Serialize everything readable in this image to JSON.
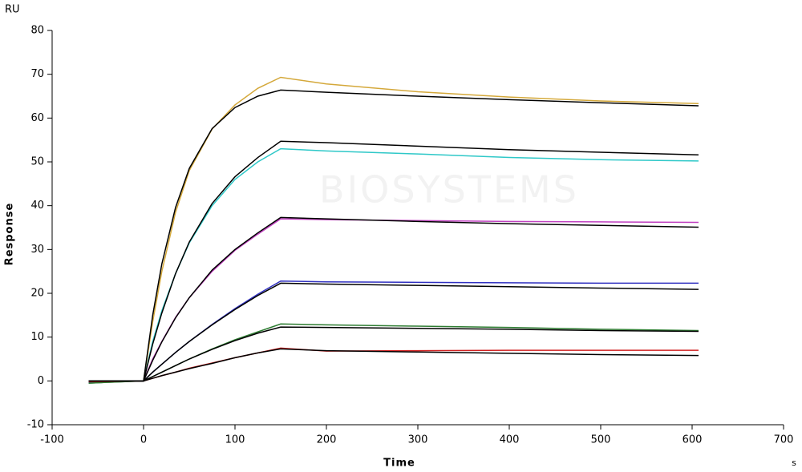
{
  "chart_data": {
    "type": "line",
    "y_unit": "RU",
    "y_label": "Response",
    "x_label": "Time",
    "x_unit": "s",
    "watermark": "BIOSYSTEMS",
    "xlim": [
      -100,
      700
    ],
    "ylim": [
      -10,
      80
    ],
    "xticks": [
      -100,
      0,
      100,
      200,
      300,
      400,
      500,
      600,
      700
    ],
    "yticks": [
      -10,
      0,
      10,
      20,
      30,
      40,
      50,
      60,
      70,
      80
    ],
    "x": [
      -60,
      0,
      10,
      20,
      35,
      50,
      75,
      100,
      125,
      150,
      200,
      300,
      400,
      500,
      607
    ],
    "series": [
      {
        "color": "#d4a83a",
        "values": [
          -0.5,
          0,
          13.5,
          25,
          38.5,
          48,
          57.5,
          63,
          66.8,
          69.3,
          67.8,
          66,
          64.8,
          63.9,
          63.3
        ]
      },
      {
        "color": "#2ec8c8",
        "values": [
          -0.5,
          0,
          9,
          16,
          24.5,
          31.5,
          40,
          46,
          50,
          53,
          52.5,
          51.8,
          51,
          50.5,
          50.2
        ]
      },
      {
        "color": "#c040c0",
        "values": [
          -0.3,
          0,
          5,
          9,
          14.5,
          19,
          25,
          29.8,
          33.5,
          37,
          36.8,
          36.6,
          36.4,
          36.3,
          36.2
        ]
      },
      {
        "color": "#3030c0",
        "values": [
          -0.3,
          0,
          2,
          3.8,
          6.5,
          9,
          12.9,
          16.5,
          19.8,
          22.8,
          22.6,
          22.5,
          22.4,
          22.3,
          22.3
        ]
      },
      {
        "color": "#2e7d32",
        "values": [
          -0.5,
          0,
          1,
          2,
          3.5,
          5,
          7.3,
          9.4,
          11.2,
          13,
          12.8,
          12.5,
          12.2,
          11.8,
          11.5
        ]
      },
      {
        "color": "#d02020",
        "values": [
          -0.2,
          0,
          0.6,
          1.2,
          2,
          2.9,
          4.1,
          5.3,
          6.4,
          7.5,
          6.8,
          6.9,
          7,
          7,
          7
        ]
      },
      {
        "color": "#000000",
        "values": [
          0,
          0,
          15,
          26.7,
          39.6,
          48.5,
          57.6,
          62.4,
          65,
          66.4,
          65.9,
          65,
          64.2,
          63.5,
          62.8
        ]
      },
      {
        "color": "#000000",
        "values": [
          0,
          0,
          8.4,
          15.5,
          24.5,
          31.7,
          40.5,
          46.6,
          51,
          54.7,
          54.4,
          53.6,
          52.8,
          52.2,
          51.6
        ]
      },
      {
        "color": "#000000",
        "values": [
          0,
          0,
          4.7,
          8.9,
          14.4,
          19,
          25.3,
          30,
          33.8,
          37.3,
          37,
          36.4,
          35.9,
          35.5,
          35.1
        ]
      },
      {
        "color": "#000000",
        "values": [
          0,
          0,
          2,
          3.8,
          6.5,
          9,
          12.8,
          16.3,
          19.5,
          22.3,
          22.1,
          21.8,
          21.5,
          21.2,
          20.9
        ]
      },
      {
        "color": "#000000",
        "values": [
          0,
          0,
          1,
          2,
          3.5,
          5,
          7.2,
          9.2,
          10.9,
          12.3,
          12.2,
          12,
          11.8,
          11.5,
          11.3
        ]
      },
      {
        "color": "#000000",
        "values": [
          0,
          0,
          0.6,
          1.2,
          2,
          2.8,
          4,
          5.3,
          6.4,
          7.3,
          6.9,
          6.6,
          6.3,
          6,
          5.8
        ]
      }
    ]
  }
}
